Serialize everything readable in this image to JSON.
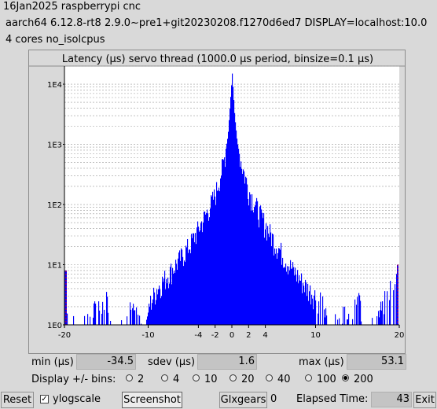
{
  "header": {
    "line1": "16Jan2025 raspberrypi cnc",
    "line2": "aarch64  6.12.8-rt8  2.9.0~pre1+git20230208.f1270d6ed7  DISPLAY=localhost:10.0",
    "line3": "4 cores  no_isolcpus"
  },
  "chart_data": {
    "type": "bar",
    "title": "Latency (µs) servo thread (1000.0 µs period, binsize=0.1 µs)",
    "x_range": [
      -20,
      20
    ],
    "x_ticks": [
      "-20",
      "-10",
      "-4",
      "-2",
      "0",
      "2",
      "4",
      "10",
      "20"
    ],
    "y_scale": "log",
    "y_range": [
      1,
      20000
    ],
    "y_ticks": [
      "1E0",
      "1E1",
      "1E2",
      "1E3",
      "1E4"
    ],
    "grid": true,
    "bar_color": "#0000ff",
    "edge_color": "#ff0000",
    "series": [
      {
        "points": [
          [
            -20,
            8
          ],
          [
            -19.5,
            1
          ],
          [
            -18,
            1
          ],
          [
            -15,
            3
          ],
          [
            -14.5,
            1
          ],
          [
            -13,
            1
          ],
          [
            -12,
            2
          ],
          [
            -11,
            1
          ],
          [
            -10,
            2
          ],
          [
            -9,
            4
          ],
          [
            -8,
            6
          ],
          [
            -7,
            9
          ],
          [
            -6,
            14
          ],
          [
            -5,
            22
          ],
          [
            -4,
            40
          ],
          [
            -3,
            75
          ],
          [
            -2,
            150
          ],
          [
            -1.5,
            280
          ],
          [
            -1,
            520
          ],
          [
            -0.5,
            1400
          ],
          [
            0,
            15000
          ],
          [
            0.3,
            3000
          ],
          [
            0.6,
            1100
          ],
          [
            1,
            550
          ],
          [
            1.5,
            300
          ],
          [
            2,
            170
          ],
          [
            3,
            85
          ],
          [
            4,
            45
          ],
          [
            5,
            25
          ],
          [
            6,
            15
          ],
          [
            7,
            9
          ],
          [
            8,
            6
          ],
          [
            9,
            4
          ],
          [
            10,
            3
          ],
          [
            11,
            2
          ],
          [
            12,
            1
          ],
          [
            13,
            2
          ],
          [
            14,
            1
          ],
          [
            15,
            3
          ],
          [
            16,
            1
          ],
          [
            17,
            1
          ],
          [
            20,
            10
          ]
        ]
      }
    ]
  },
  "stats": {
    "min_label": "min (µs)",
    "min_value": "-34.5",
    "sdev_label": "sdev (µs)",
    "sdev_value": "1.6",
    "max_label": "max (µs)",
    "max_value": "53.1"
  },
  "bins": {
    "label": "Display +/- bins:",
    "options": [
      "2",
      "4",
      "10",
      "20",
      "40",
      "100",
      "200"
    ],
    "selected": "200"
  },
  "toolbar": {
    "reset": "Reset",
    "ylog_label": "ylogscale",
    "ylog_checked": "✓",
    "screenshot": "Screenshot",
    "glxgears": "Glxgears",
    "glx_count": "0",
    "elapsed_label": "Elapsed Time:",
    "elapsed_value": "43",
    "exit": "Exit"
  }
}
